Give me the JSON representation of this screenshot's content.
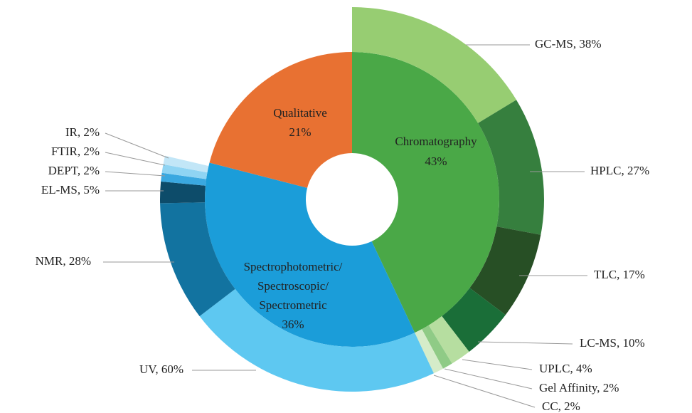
{
  "chart_data": {
    "type": "sunburst",
    "categories": [
      "Chromatography",
      "Spectrophotometric/ Spectroscopic/ Spectrometric",
      "Qualitative"
    ],
    "values": [
      43,
      36,
      21
    ],
    "value_labels": [
      "43%",
      "36%",
      "21%"
    ],
    "colors": [
      "#4aa847",
      "#1b9dd9",
      "#e87132"
    ],
    "children": [
      {
        "labels": [
          "GC-MS, 38%",
          "HPLC, 27%",
          "TLC, 17%",
          "LC-MS, 10%",
          "UPLC, 4%",
          "Gel Affinity, 2%",
          "CC, 2%"
        ],
        "values": [
          38,
          27,
          17,
          10,
          4,
          2,
          2
        ],
        "colors": [
          "#97cd72",
          "#367f3e",
          "#274f25",
          "#1a6e38",
          "#b6dea0",
          "#8fcb86",
          "#d5ecc9"
        ]
      },
      {
        "labels": [
          "UV, 60%",
          "NMR, 28%",
          "EL-MS, 5%",
          "DEPT, 2%",
          "FTIR, 2%",
          "IR, 2%"
        ],
        "values": [
          60,
          28,
          5,
          2,
          2,
          2
        ],
        "colors": [
          "#5ec8f1",
          "#1273a0",
          "#0d4c6a",
          "#3aa8e0",
          "#8fd4f3",
          "#c2e6f7"
        ]
      },
      null
    ]
  }
}
